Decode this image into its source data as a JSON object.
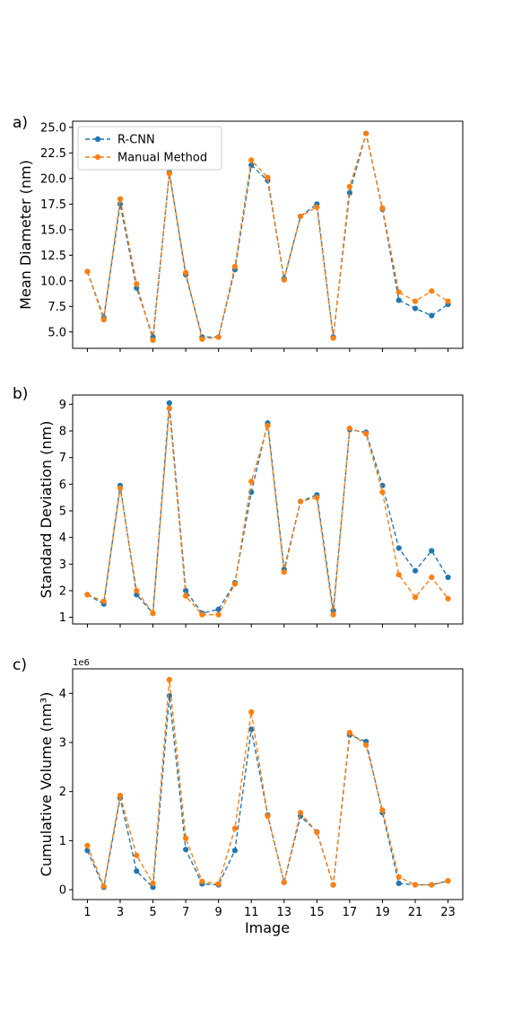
{
  "colors": {
    "rcnn": "#1f77b4",
    "manual": "#ff7f0e",
    "axes": "#000000",
    "legend_border": "#cccccc"
  },
  "figure": {
    "xlabel": "Image",
    "x_tick_labels": [
      "1",
      "3",
      "5",
      "7",
      "9",
      "11",
      "13",
      "15",
      "17",
      "19",
      "21",
      "23"
    ]
  },
  "legend": {
    "placement": "upper-left",
    "entries": [
      "R-CNN",
      "Manual Method"
    ]
  },
  "chart_data": [
    {
      "type": "line",
      "panel_label": "a)",
      "title": "",
      "xlabel": "",
      "ylabel": "Mean Diameter (nm)",
      "xlim": [
        0.1,
        23.9
      ],
      "ylim": [
        3.4,
        25.6
      ],
      "yticks": [
        5.0,
        7.5,
        10.0,
        12.5,
        15.0,
        17.5,
        20.0,
        22.5,
        25.0
      ],
      "ytick_labels": [
        "5.0",
        "7.5",
        "10.0",
        "12.5",
        "15.0",
        "17.5",
        "20.0",
        "22.5",
        "25.0"
      ],
      "x": [
        1,
        2,
        3,
        4,
        5,
        6,
        7,
        8,
        9,
        10,
        11,
        12,
        13,
        14,
        15,
        16,
        17,
        18,
        19,
        20,
        21,
        22,
        23
      ],
      "series": [
        {
          "name": "R-CNN",
          "values": [
            10.9,
            6.4,
            17.5,
            9.3,
            4.5,
            20.6,
            10.6,
            4.5,
            4.5,
            11.1,
            21.3,
            19.8,
            10.2,
            16.3,
            17.5,
            4.5,
            18.6,
            24.4,
            17.0,
            8.1,
            7.3,
            6.6,
            7.7
          ]
        },
        {
          "name": "Manual Method",
          "values": [
            10.9,
            6.2,
            18.0,
            9.7,
            4.2,
            20.5,
            10.8,
            4.3,
            4.5,
            11.4,
            21.8,
            20.1,
            10.1,
            16.3,
            17.2,
            4.4,
            19.2,
            24.4,
            17.1,
            8.9,
            8.0,
            9.0,
            8.0
          ]
        }
      ],
      "grid": false,
      "legend_placement": "upper-left"
    },
    {
      "type": "line",
      "panel_label": "b)",
      "title": "",
      "xlabel": "",
      "ylabel": "Standard Deviation (nm)",
      "xlim": [
        0.1,
        23.9
      ],
      "ylim": [
        0.75,
        9.35
      ],
      "yticks": [
        1,
        2,
        3,
        4,
        5,
        6,
        7,
        8,
        9
      ],
      "ytick_labels": [
        "1",
        "2",
        "3",
        "4",
        "5",
        "6",
        "7",
        "8",
        "9"
      ],
      "x": [
        1,
        2,
        3,
        4,
        5,
        6,
        7,
        8,
        9,
        10,
        11,
        12,
        13,
        14,
        15,
        16,
        17,
        18,
        19,
        20,
        21,
        22,
        23
      ],
      "series": [
        {
          "name": "R-CNN",
          "values": [
            1.85,
            1.5,
            5.95,
            1.85,
            1.15,
            9.05,
            2.0,
            1.15,
            1.3,
            2.3,
            5.7,
            8.3,
            2.8,
            5.35,
            5.6,
            1.25,
            8.05,
            7.95,
            5.95,
            3.6,
            2.75,
            3.5,
            2.5
          ]
        },
        {
          "name": "Manual Method",
          "values": [
            1.85,
            1.6,
            5.85,
            2.0,
            1.15,
            8.85,
            1.8,
            1.1,
            1.1,
            2.25,
            6.1,
            8.2,
            2.7,
            5.35,
            5.5,
            1.1,
            8.1,
            7.9,
            5.7,
            2.6,
            1.75,
            2.5,
            1.7
          ]
        }
      ],
      "grid": false
    },
    {
      "type": "line",
      "panel_label": "c)",
      "title": "",
      "xlabel": "Image",
      "ylabel": "Cumulative Volume (nm³)",
      "axis_offset_label": "1e6",
      "xlim": [
        0.1,
        23.9
      ],
      "ylim": [
        -0.2,
        4.5
      ],
      "yticks": [
        0,
        1,
        2,
        3,
        4
      ],
      "ytick_labels": [
        "0",
        "1",
        "2",
        "3",
        "4"
      ],
      "x": [
        1,
        2,
        3,
        4,
        5,
        6,
        7,
        8,
        9,
        10,
        11,
        12,
        13,
        14,
        15,
        16,
        17,
        18,
        19,
        20,
        21,
        22,
        23
      ],
      "series": [
        {
          "name": "R-CNN",
          "values": [
            0.8,
            0.05,
            1.87,
            0.38,
            0.05,
            3.95,
            0.82,
            0.12,
            0.1,
            0.8,
            3.27,
            1.52,
            0.15,
            1.5,
            1.18,
            0.1,
            3.15,
            3.02,
            1.57,
            0.13,
            0.1,
            0.1,
            0.18
          ]
        },
        {
          "name": "Manual Method",
          "values": [
            0.9,
            0.07,
            1.92,
            0.7,
            0.13,
            4.28,
            1.05,
            0.17,
            0.12,
            1.25,
            3.62,
            1.5,
            0.15,
            1.57,
            1.17,
            0.1,
            3.2,
            2.95,
            1.62,
            0.26,
            0.1,
            0.1,
            0.18
          ]
        }
      ],
      "grid": false
    }
  ]
}
